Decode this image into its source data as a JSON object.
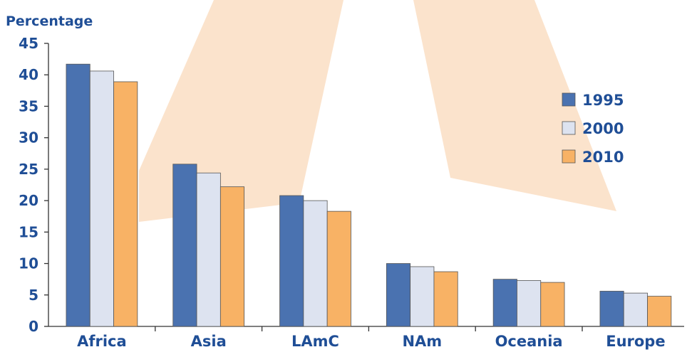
{
  "chart_data": {
    "type": "bar",
    "ylabel": "Percentage",
    "xlabel": "",
    "title": "",
    "categories": [
      "Africa",
      "Asia",
      "LAmC",
      "NAm",
      "Oceania",
      "Europe"
    ],
    "series": [
      {
        "name": "1995",
        "values": [
          41.7,
          25.8,
          20.8,
          10.0,
          7.5,
          5.6
        ]
      },
      {
        "name": "2000",
        "values": [
          40.6,
          24.4,
          20.0,
          9.5,
          7.3,
          5.3
        ]
      },
      {
        "name": "2010",
        "values": [
          38.9,
          22.2,
          18.3,
          8.7,
          7.0,
          4.8
        ]
      }
    ],
    "ylim": [
      0,
      45
    ],
    "yticks": [
      "0",
      "5",
      "10",
      "15",
      "20",
      "25",
      "30",
      "35",
      "40",
      "45"
    ],
    "grid": false,
    "legend_position": "right",
    "colors": {
      "series": [
        "#4a72b0",
        "#dde3f0",
        "#f8b265"
      ],
      "text": "#1f4e96",
      "axis": "#333333",
      "background_shape": "#fbe3cc"
    }
  }
}
